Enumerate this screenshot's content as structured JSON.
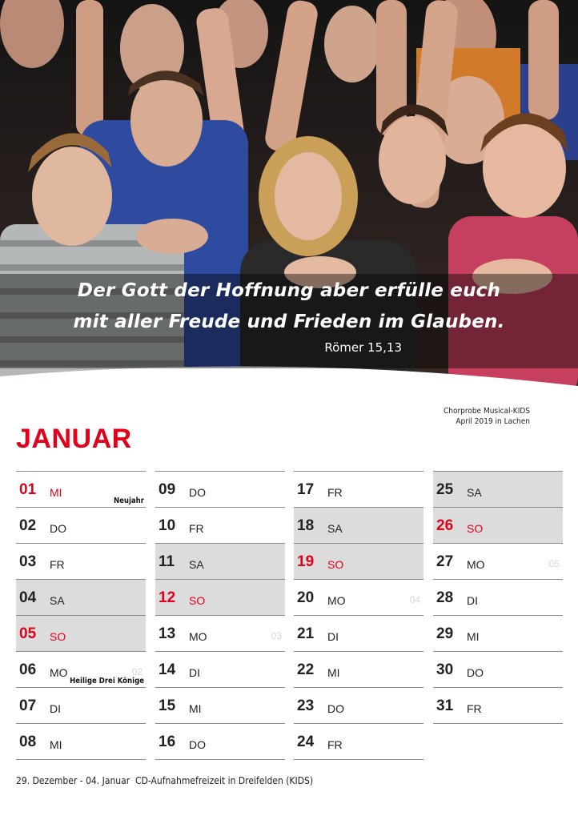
{
  "verse": {
    "line1": "Der Gott der Hoffnung aber erfülle euch",
    "line2": "mit aller Freude und  Frieden im Glauben.",
    "reference": "Römer 15,13"
  },
  "photo_caption": {
    "line1": "Chorprobe Musical-KIDS",
    "line2": "April 2019 in Lachen"
  },
  "month": "JANUAR",
  "colors": {
    "accent_red": "#e3001b",
    "weekend_shade": "#dcdcdc",
    "rule": "#8c8c8c"
  },
  "columns": [
    [
      {
        "num": "01",
        "day": "MI",
        "red": true,
        "shade": false,
        "holiday": "Neujahr",
        "week": ""
      },
      {
        "num": "02",
        "day": "DO",
        "red": false,
        "shade": false,
        "holiday": "",
        "week": ""
      },
      {
        "num": "03",
        "day": "FR",
        "red": false,
        "shade": false,
        "holiday": "",
        "week": ""
      },
      {
        "num": "04",
        "day": "SA",
        "red": false,
        "shade": true,
        "holiday": "",
        "week": ""
      },
      {
        "num": "05",
        "day": "SO",
        "red": true,
        "shade": true,
        "holiday": "",
        "week": ""
      },
      {
        "num": "06",
        "day": "MO",
        "red": false,
        "shade": false,
        "holiday": "Heilige Drei Könige",
        "week": "02"
      },
      {
        "num": "07",
        "day": "DI",
        "red": false,
        "shade": false,
        "holiday": "",
        "week": ""
      },
      {
        "num": "08",
        "day": "MI",
        "red": false,
        "shade": false,
        "holiday": "",
        "week": ""
      }
    ],
    [
      {
        "num": "09",
        "day": "DO",
        "red": false,
        "shade": false,
        "holiday": "",
        "week": ""
      },
      {
        "num": "10",
        "day": "FR",
        "red": false,
        "shade": false,
        "holiday": "",
        "week": ""
      },
      {
        "num": "11",
        "day": "SA",
        "red": false,
        "shade": true,
        "holiday": "",
        "week": ""
      },
      {
        "num": "12",
        "day": "SO",
        "red": true,
        "shade": true,
        "holiday": "",
        "week": ""
      },
      {
        "num": "13",
        "day": "MO",
        "red": false,
        "shade": false,
        "holiday": "",
        "week": "03"
      },
      {
        "num": "14",
        "day": "DI",
        "red": false,
        "shade": false,
        "holiday": "",
        "week": ""
      },
      {
        "num": "15",
        "day": "MI",
        "red": false,
        "shade": false,
        "holiday": "",
        "week": ""
      },
      {
        "num": "16",
        "day": "DO",
        "red": false,
        "shade": false,
        "holiday": "",
        "week": ""
      }
    ],
    [
      {
        "num": "17",
        "day": "FR",
        "red": false,
        "shade": false,
        "holiday": "",
        "week": ""
      },
      {
        "num": "18",
        "day": "SA",
        "red": false,
        "shade": true,
        "holiday": "",
        "week": ""
      },
      {
        "num": "19",
        "day": "SO",
        "red": true,
        "shade": true,
        "holiday": "",
        "week": ""
      },
      {
        "num": "20",
        "day": "MO",
        "red": false,
        "shade": false,
        "holiday": "",
        "week": "04"
      },
      {
        "num": "21",
        "day": "DI",
        "red": false,
        "shade": false,
        "holiday": "",
        "week": ""
      },
      {
        "num": "22",
        "day": "MI",
        "red": false,
        "shade": false,
        "holiday": "",
        "week": ""
      },
      {
        "num": "23",
        "day": "DO",
        "red": false,
        "shade": false,
        "holiday": "",
        "week": ""
      },
      {
        "num": "24",
        "day": "FR",
        "red": false,
        "shade": false,
        "holiday": "",
        "week": ""
      }
    ],
    [
      {
        "num": "25",
        "day": "SA",
        "red": false,
        "shade": true,
        "holiday": "",
        "week": ""
      },
      {
        "num": "26",
        "day": "SO",
        "red": true,
        "shade": true,
        "holiday": "",
        "week": ""
      },
      {
        "num": "27",
        "day": "MO",
        "red": false,
        "shade": false,
        "holiday": "",
        "week": "05"
      },
      {
        "num": "28",
        "day": "DI",
        "red": false,
        "shade": false,
        "holiday": "",
        "week": ""
      },
      {
        "num": "29",
        "day": "MI",
        "red": false,
        "shade": false,
        "holiday": "",
        "week": ""
      },
      {
        "num": "30",
        "day": "DO",
        "red": false,
        "shade": false,
        "holiday": "",
        "week": ""
      },
      {
        "num": "31",
        "day": "FR",
        "red": false,
        "shade": false,
        "holiday": "",
        "week": ""
      }
    ]
  ],
  "footer": "29. Dezember - 04. Januar  CD-Aufnahmefreizeit in Dreifelden (KIDS)"
}
